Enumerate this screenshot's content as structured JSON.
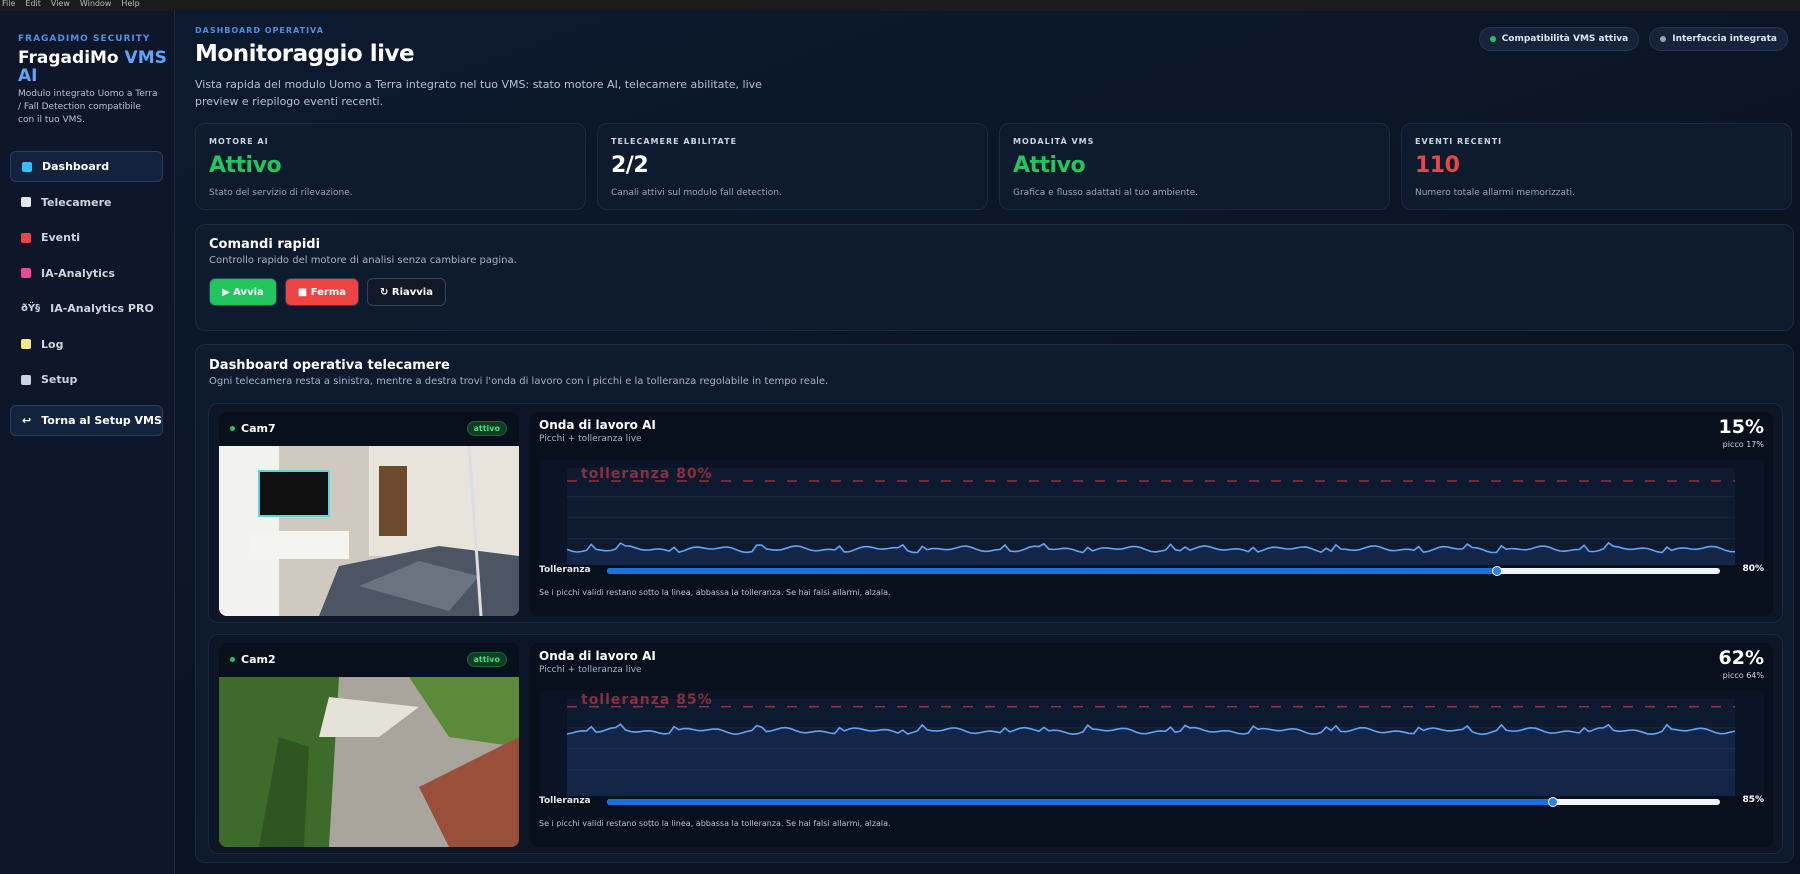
{
  "menu": [
    "File",
    "Edit",
    "View",
    "Window",
    "Help"
  ],
  "sidebar": {
    "kicker": "FRAGADIMO SECURITY",
    "brand": "FragadiMo",
    "brand_accent": "VMS AI",
    "description": "Modulo integrato Uomo a Terra / Fall Detection compatibile con il tuo VMS.",
    "nav": [
      {
        "label": "Dashboard",
        "active": true
      },
      {
        "label": "Telecamere"
      },
      {
        "label": "Eventi"
      },
      {
        "label": "IA-Analytics"
      },
      {
        "icon": "ðŸ§",
        "label": "IA-Analytics PRO"
      },
      {
        "label": "Log"
      },
      {
        "label": "Setup"
      }
    ],
    "back": {
      "icon": "↩",
      "label": "Torna al Setup VMS"
    }
  },
  "header": {
    "kicker": "DASHBOARD OPERATIVA",
    "title": "Monitoraggio live",
    "description": "Vista rapida del modulo Uomo a Terra integrato nel tuo VMS: stato motore AI, telecamere abilitate, live preview e riepilogo eventi recenti.",
    "pills": [
      {
        "label": "Compatibilità VMS attiva",
        "dot": "#22c55e"
      },
      {
        "label": "Interfaccia integrata",
        "dot": "#94a3b8"
      }
    ]
  },
  "stats": [
    {
      "label": "MOTORE AI",
      "value": "Attivo",
      "note": "Stato del servizio di rilevazione.",
      "color": "#22c55e"
    },
    {
      "label": "TELECAMERE ABILITATE",
      "value": "2/2",
      "note": "Canali attivi sul modulo fall detection.",
      "color": "#ffffff"
    },
    {
      "label": "MODALITÀ VMS",
      "value": "Attivo",
      "note": "Grafica e flusso adattati al tuo ambiente.",
      "color": "#22c55e"
    },
    {
      "label": "EVENTI RECENTI",
      "value": "110",
      "note": "Numero totale allarmi memorizzati.",
      "color": "#ef4444"
    }
  ],
  "quick": {
    "title": "Comandi rapidi",
    "subtitle": "Controllo rapido del motore di analisi senza cambiare pagina.",
    "buttons": [
      {
        "label": "▶ Avvia",
        "color": "#22c55e"
      },
      {
        "label": "■ Ferma",
        "color": "#ef4444"
      },
      {
        "label": "↻ Riavvia",
        "color": "#111827"
      }
    ]
  },
  "cameras": {
    "title": "Dashboard operativa telecamere",
    "subtitle": "Ogni telecamera resta a sinistra, mentre a destra trovi l'onda di lavoro con i picchi e la tolleranza regolabile in tempo reale.",
    "items": [
      {
        "name": "Cam7",
        "status": "attivo",
        "wave_title": "Onda di lavoro AI",
        "wave_subtitle": "Picchi + tolleranza live",
        "level": {
          "value": 15,
          "label": "15%"
        },
        "peak": "picco 17%",
        "tolerance_tag": "tolleranza 80%",
        "slider_label": "Tolleranza",
        "tolerance": {
          "value": 80,
          "label": "80%"
        },
        "hint": "Se i picchi validi restano sotto la linea, abbassa la tolleranza. Se hai falsi allarmi, alzala."
      },
      {
        "name": "Cam2",
        "status": "attivo",
        "wave_title": "Onda di lavoro AI",
        "wave_subtitle": "Picchi + tolleranza live",
        "level": {
          "value": 62,
          "label": "62%"
        },
        "peak": "picco 64%",
        "tolerance_tag": "tolleranza 85%",
        "slider_label": "Tolleranza",
        "tolerance": {
          "value": 85,
          "label": "85%"
        },
        "hint": "Se i picchi validi restano sotto la linea, abbassa la tolleranza. Se hai falsi allarmi, alzala."
      }
    ]
  }
}
